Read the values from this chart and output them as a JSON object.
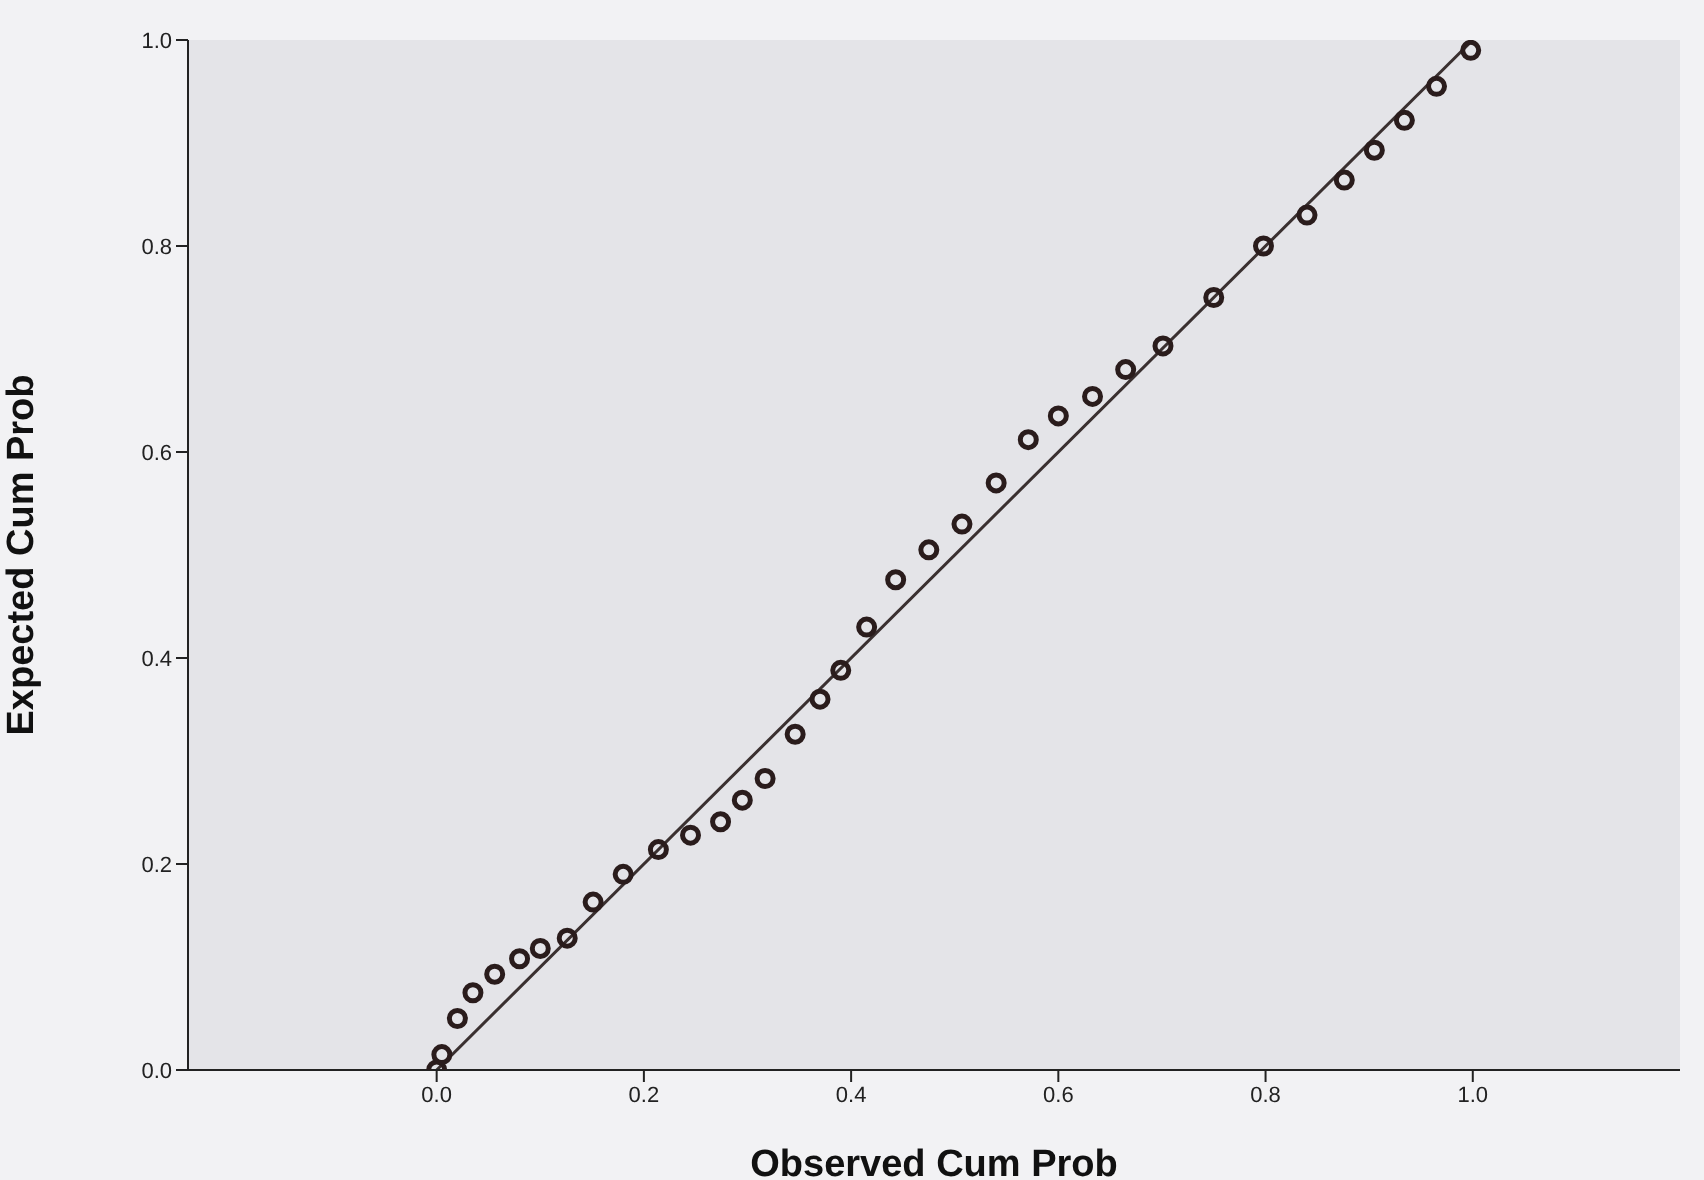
{
  "chart_data": {
    "type": "scatter",
    "xlabel": "Observed Cum Prob",
    "ylabel": "Expected Cum Prob",
    "xlim": [
      -0.24,
      1.2
    ],
    "ylim": [
      0,
      1
    ],
    "xticks": [
      {
        "value": 0,
        "label": "0.0"
      },
      {
        "value": 0.2,
        "label": "0.2"
      },
      {
        "value": 0.4,
        "label": "0.4"
      },
      {
        "value": 0.6,
        "label": "0.6"
      },
      {
        "value": 0.8,
        "label": "0.8"
      },
      {
        "value": 1,
        "label": "1.0"
      }
    ],
    "yticks": [
      {
        "value": 0,
        "label": "0.0"
      },
      {
        "value": 0.2,
        "label": "0.2"
      },
      {
        "value": 0.4,
        "label": "0.4"
      },
      {
        "value": 0.6,
        "label": "0.6"
      },
      {
        "value": 0.8,
        "label": "0.8"
      },
      {
        "value": 1,
        "label": "1.0"
      }
    ],
    "marker": "circle",
    "series": [
      {
        "color": "#2a1c1c",
        "x": [
          0,
          0.005,
          0.02,
          0.035,
          0.056,
          0.08,
          0.1,
          0.126,
          0.151,
          0.18,
          0.214,
          0.245,
          0.274,
          0.295,
          0.317,
          0.346,
          0.37,
          0.39,
          0.415,
          0.443,
          0.475,
          0.507,
          0.54,
          0.571,
          0.6,
          0.633,
          0.665,
          0.701,
          0.75,
          0.798,
          0.84,
          0.876,
          0.905,
          0.934,
          0.965,
          0.998
        ],
        "values": [
          0,
          0.015,
          0.05,
          0.075,
          0.093,
          0.108,
          0.118,
          0.128,
          0.163,
          0.19,
          0.214,
          0.228,
          0.241,
          0.262,
          0.283,
          0.326,
          0.36,
          0.388,
          0.43,
          0.476,
          0.505,
          0.53,
          0.57,
          0.612,
          0.635,
          0.654,
          0.68,
          0.703,
          0.75,
          0.8,
          0.83,
          0.864,
          0.893,
          0.922,
          0.955,
          0.99
        ]
      },
      {
        "type": "line",
        "color": "#3a3030",
        "marker": "none",
        "x": [
          0,
          1
        ],
        "values": [
          0,
          1
        ]
      }
    ]
  }
}
